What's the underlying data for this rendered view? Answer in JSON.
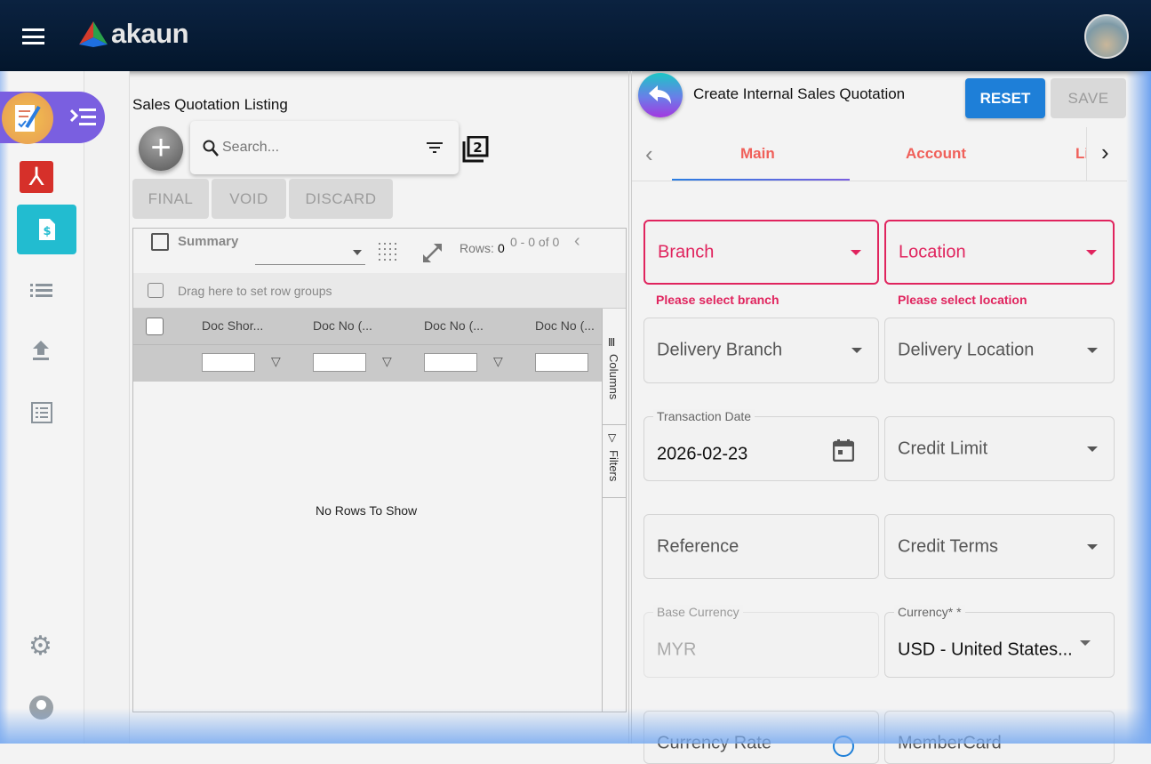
{
  "app": {
    "name": "akaun"
  },
  "listing": {
    "title": "Sales Quotation Listing",
    "search_placeholder": "Search...",
    "buttons": {
      "final": "FINAL",
      "void": "VOID",
      "discard": "DISCARD"
    },
    "summary_label": "Summary",
    "rows_label": "Rows:",
    "rows_value": "0",
    "pagination": "0 - 0 of 0",
    "row_groups_hint": "Drag here to set row groups",
    "columns": [
      "Doc Shor...",
      "Doc No (...",
      "Doc No (...",
      "Doc No (..."
    ],
    "side_tabs": {
      "columns": "Columns",
      "filters": "Filters"
    },
    "empty": "No Rows To Show"
  },
  "form": {
    "title": "Create Internal Sales Quotation",
    "reset": "RESET",
    "save": "SAVE",
    "tabs": [
      "Main",
      "Account",
      "Li"
    ],
    "active_tab": "Main",
    "fields": {
      "branch": "Branch",
      "branch_error": "Please select branch",
      "location": "Location",
      "location_error": "Please select location",
      "delivery_branch": "Delivery Branch",
      "delivery_location": "Delivery Location",
      "transaction_date_label": "Transaction Date",
      "transaction_date": "2026-02-23",
      "credit_limit": "Credit Limit",
      "reference": "Reference",
      "credit_terms": "Credit Terms",
      "base_currency_label": "Base Currency",
      "base_currency": "MYR",
      "currency_label": "Currency* *",
      "currency": "USD - United States...",
      "currency_rate": "Currency Rate",
      "member_card": "MemberCard"
    }
  },
  "colors": {
    "accent": "#1e7fd8",
    "error": "#e0245e",
    "tab_active": "#f0605a",
    "rail_active": "#22bcd0"
  }
}
